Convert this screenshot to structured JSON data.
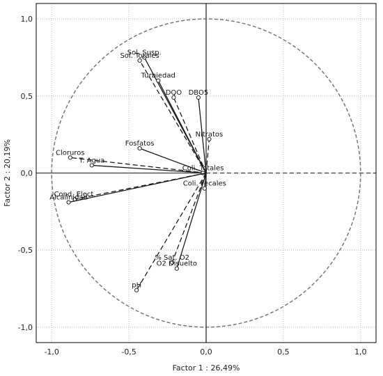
{
  "chart_data": {
    "type": "scatter",
    "title": "",
    "xlabel": "Factor 1 : 26,49%",
    "ylabel": "Factor 2 : 20,19%",
    "xlim": [
      -1.1,
      1.1
    ],
    "ylim": [
      -1.1,
      1.1
    ],
    "x_ticks": [
      -1.0,
      -0.5,
      0.0,
      0.5,
      1.0
    ],
    "y_ticks": [
      -1.0,
      -0.5,
      0.0,
      0.5,
      1.0
    ],
    "x_tick_labels": [
      "-1,0",
      "-0,5",
      "0,0",
      "0,5",
      "1,0"
    ],
    "y_tick_labels": [
      "-1,0",
      "-0,5",
      "0,0",
      "0,5",
      "1,0"
    ],
    "grid": true,
    "unit_circle": true,
    "variables": [
      {
        "label": "Sol. Susp.",
        "x": -0.4,
        "y": 0.75
      },
      {
        "label": "Sol. Totales",
        "x": -0.43,
        "y": 0.73
      },
      {
        "label": "Turbiedad",
        "x": -0.31,
        "y": 0.6
      },
      {
        "label": "DQO",
        "x": -0.21,
        "y": 0.49
      },
      {
        "label": "DBO5",
        "x": -0.05,
        "y": 0.49
      },
      {
        "label": "Nitratos",
        "x": 0.02,
        "y": 0.22
      },
      {
        "label": "Fosfatos",
        "x": -0.43,
        "y": 0.16
      },
      {
        "label": "Cloruros",
        "x": -0.88,
        "y": 0.1
      },
      {
        "label": "T. Agua",
        "x": -0.74,
        "y": 0.05
      },
      {
        "label": "Coli. Totales",
        "x": -0.02,
        "y": 0.0
      },
      {
        "label": "Coli. Fecales",
        "x": -0.01,
        "y": -0.1
      },
      {
        "label": "Cond. Elect.",
        "x": -0.85,
        "y": -0.17
      },
      {
        "label": "Alcalinidad",
        "x": -0.89,
        "y": -0.19
      },
      {
        "label": "% Sat. O2",
        "x": -0.22,
        "y": -0.58
      },
      {
        "label": "O2 Disuelto",
        "x": -0.19,
        "y": -0.62
      },
      {
        "label": "pH",
        "x": -0.45,
        "y": -0.76
      }
    ]
  }
}
